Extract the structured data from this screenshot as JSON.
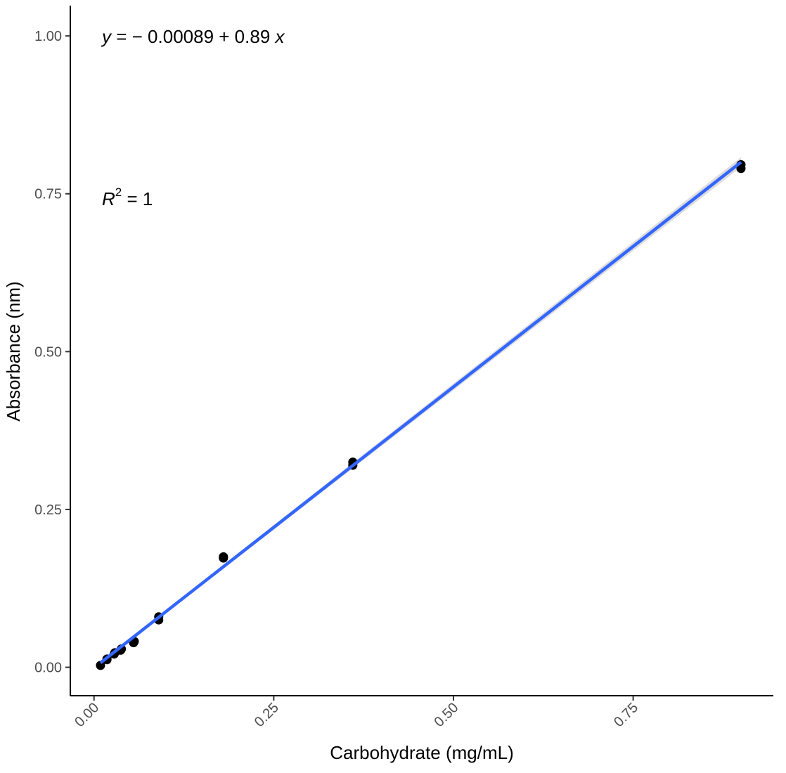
{
  "chart_data": {
    "type": "scatter",
    "title": "",
    "xlabel": "Carbohydrate (mg/mL)",
    "ylabel": "Absorbance (nm)",
    "xlim": [
      -0.033,
      0.945
    ],
    "ylim": [
      -0.045,
      1.048
    ],
    "xticks": [
      0.0,
      0.25,
      0.5,
      0.75
    ],
    "xtick_labels": [
      "0.00",
      "0.25",
      "0.50",
      "0.75"
    ],
    "yticks": [
      0.0,
      0.25,
      0.5,
      0.75,
      1.0
    ],
    "ytick_labels": [
      "0.00",
      "0.25",
      "0.50",
      "0.75",
      "1.00"
    ],
    "grid": false,
    "series": [
      {
        "points": [
          {
            "x": 0.009,
            "y": 0.003
          },
          {
            "x": 0.018,
            "y": 0.012
          },
          {
            "x": 0.018,
            "y": 0.013
          },
          {
            "x": 0.028,
            "y": 0.021
          },
          {
            "x": 0.029,
            "y": 0.023
          },
          {
            "x": 0.037,
            "y": 0.027
          },
          {
            "x": 0.038,
            "y": 0.029
          },
          {
            "x": 0.055,
            "y": 0.039
          },
          {
            "x": 0.056,
            "y": 0.041
          },
          {
            "x": 0.09,
            "y": 0.075
          },
          {
            "x": 0.09,
            "y": 0.08
          },
          {
            "x": 0.18,
            "y": 0.173
          },
          {
            "x": 0.18,
            "y": 0.175
          },
          {
            "x": 0.36,
            "y": 0.32
          },
          {
            "x": 0.36,
            "y": 0.325
          },
          {
            "x": 0.9,
            "y": 0.79
          },
          {
            "x": 0.9,
            "y": 0.796
          }
        ],
        "color": "#000000"
      }
    ],
    "fit": {
      "intercept": -0.00089,
      "slope": 0.89,
      "x_range": [
        0.009,
        0.9
      ],
      "color": "#3366ff",
      "band_color": "#bfbfbf"
    },
    "annotations": {
      "equation": {
        "y_var": "y",
        "equals": " = ",
        "intercept_text": "− 0.00089",
        "plus": " + ",
        "slope_text": "0.89",
        "x_var": " x"
      },
      "r2": {
        "var": "R",
        "sup": "2",
        "equals": " = ",
        "value": "1"
      }
    }
  }
}
